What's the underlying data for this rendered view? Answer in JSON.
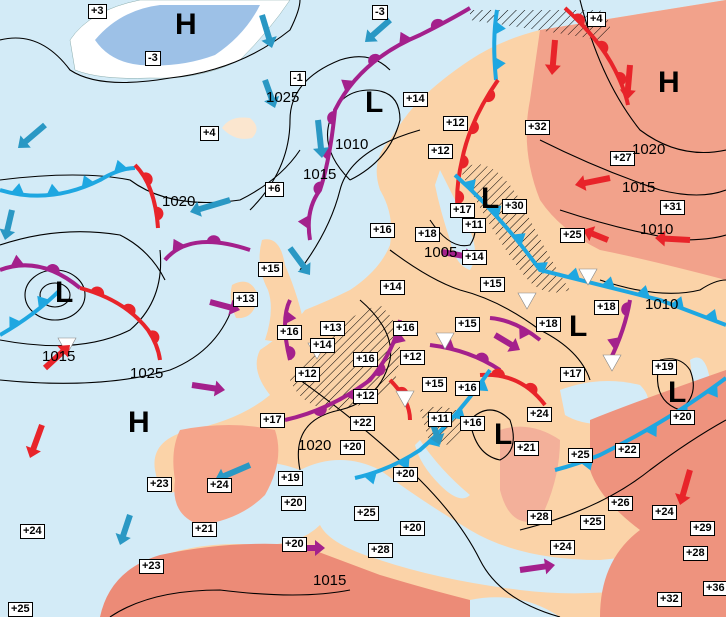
{
  "map": {
    "colors": {
      "sea": "#d3ebf7",
      "land": "#fbd3a8",
      "warm_land": "#f5a58b",
      "hot_land": "#ec8b77",
      "ice": "#9dc1e7",
      "cold_front": "#1ea7e1",
      "warm_front": "#e8242a",
      "occluded_front": "#a4208c",
      "isobar": "#000000"
    },
    "temperatures": [
      "+3",
      "-3",
      "-3",
      "+4",
      "-1",
      "+4",
      "+14",
      "+12",
      "+32",
      "+12",
      "+27",
      "+6",
      "+17",
      "+30",
      "+11",
      "+31",
      "+16",
      "+18",
      "+25",
      "+14",
      "+15",
      "+14",
      "+15",
      "+13",
      "+18",
      "+18",
      "+15",
      "+16",
      "+13",
      "+16",
      "+14",
      "+16",
      "+12",
      "+12",
      "+17",
      "+19",
      "+15",
      "+16",
      "+12",
      "+20",
      "+17",
      "+22",
      "+11",
      "+16",
      "+24",
      "+20",
      "+21",
      "+22",
      "+25",
      "+19",
      "+23",
      "+24",
      "+20",
      "+20",
      "+26",
      "+25",
      "+28",
      "+25",
      "+24",
      "+29",
      "+21",
      "+20",
      "+24",
      "+20",
      "+28",
      "+24",
      "+28",
      "+23",
      "+36",
      "+32",
      "+25"
    ],
    "isobar_labels": [
      "1025",
      "1010",
      "1015",
      "1020",
      "1020",
      "1015",
      "1010",
      "1005",
      "1010",
      "1015",
      "1025",
      "1020",
      "1015"
    ],
    "pressure_centers": [
      "H",
      "H",
      "L",
      "L",
      "L",
      "L",
      "L",
      "L",
      "H"
    ],
    "legend_note": ""
  }
}
